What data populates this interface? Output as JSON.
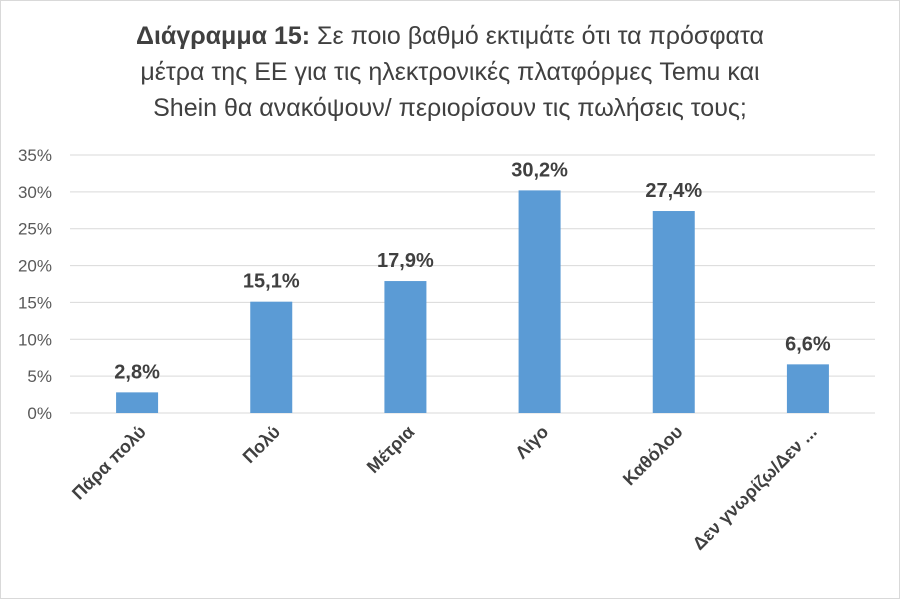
{
  "chart_data": {
    "type": "bar",
    "title_bold": "Διάγραμμα 15:",
    "title_line1": "Σε ποιο βαθμό εκτιμάτε ότι τα πρόσφατα",
    "title_line2": "μέτρα της ΕΕ για τις ηλεκτρονικές πλατφόρμες Temu και",
    "title_line3": "Shein θα ανακόψουν/ περιορίσουν τις πωλήσεις τους;",
    "categories": [
      "Πάρα πολύ",
      "Πολύ",
      "Μέτρια",
      "Λίγο",
      "Καθόλου",
      "Δεν γνωρίζω/Δεν ..."
    ],
    "values": [
      2.8,
      15.1,
      17.9,
      30.2,
      27.4,
      6.6
    ],
    "data_labels": [
      "2,8%",
      "15,1%",
      "17,9%",
      "30,2%",
      "27,4%",
      "6,6%"
    ],
    "y_ticks": [
      "0%",
      "5%",
      "10%",
      "15%",
      "20%",
      "25%",
      "30%",
      "35%"
    ],
    "ylim": [
      0,
      35
    ],
    "grid": true,
    "bar_color": "#5b9bd5",
    "grid_color": "#d9d9d9"
  }
}
